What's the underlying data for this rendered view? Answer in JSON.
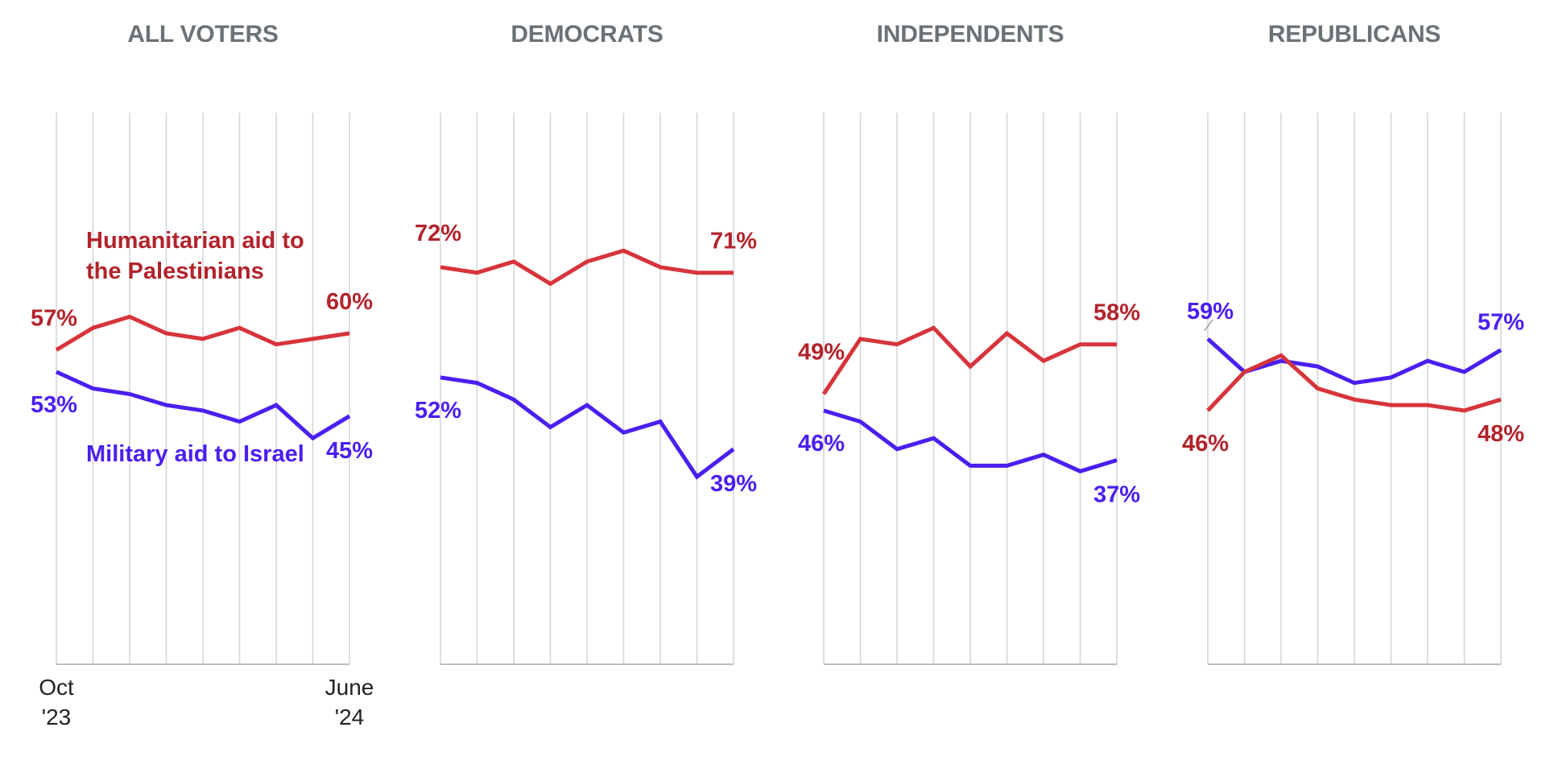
{
  "colors": {
    "humanitarian": "#d7343b",
    "humanitarian_text": "#b2232b",
    "military": "#4a1ff0",
    "military_text": "#4a1ff0",
    "grid": "#d4d4d4",
    "axis": "#bdbdbd",
    "title": "#6b7276",
    "tick_text": "#222222"
  },
  "chart_data": [
    {
      "type": "line",
      "title": "ALL VOTERS",
      "ylim": [
        0,
        100
      ],
      "grid": true,
      "x_start_label": [
        "Oct",
        "'23"
      ],
      "x_end_label": [
        "June",
        "'24"
      ],
      "series": [
        {
          "name": "Humanitarian aid to the Palestinians",
          "key": "humanitarian",
          "values": [
            57,
            61,
            63,
            60,
            59,
            61,
            58,
            59,
            60
          ],
          "start_label": "57%",
          "end_label": "60%"
        },
        {
          "name": "Military aid to Israel",
          "key": "military",
          "values": [
            53,
            50,
            49,
            47,
            46,
            44,
            47,
            41,
            45
          ],
          "start_label": "53%",
          "end_label": "45%"
        }
      ],
      "series_labels": {
        "humanitarian": [
          "Humanitarian aid to",
          "the Palestinians"
        ],
        "military": [
          "Military aid to Israel"
        ]
      }
    },
    {
      "type": "line",
      "title": "DEMOCRATS",
      "ylim": [
        0,
        100
      ],
      "grid": true,
      "series": [
        {
          "key": "humanitarian",
          "values": [
            72,
            71,
            73,
            69,
            73,
            75,
            72,
            71,
            71
          ],
          "start_label": "72%",
          "end_label": "71%"
        },
        {
          "key": "military",
          "values": [
            52,
            51,
            48,
            43,
            47,
            42,
            44,
            34,
            39
          ],
          "start_label": "52%",
          "end_label": "39%"
        }
      ]
    },
    {
      "type": "line",
      "title": "INDEPENDENTS",
      "ylim": [
        0,
        100
      ],
      "grid": true,
      "series": [
        {
          "key": "humanitarian",
          "values": [
            49,
            59,
            58,
            61,
            54,
            60,
            55,
            58,
            58
          ],
          "start_label": "49%",
          "end_label": "58%"
        },
        {
          "key": "military",
          "values": [
            46,
            44,
            39,
            41,
            36,
            36,
            38,
            35,
            37
          ],
          "start_label": "46%",
          "end_label": "37%"
        }
      ]
    },
    {
      "type": "line",
      "title": "REPUBLICANS",
      "ylim": [
        0,
        100
      ],
      "grid": true,
      "series": [
        {
          "key": "military",
          "values": [
            59,
            53,
            55,
            54,
            51,
            52,
            55,
            53,
            57
          ],
          "start_label": "59%",
          "end_label": "57%"
        },
        {
          "key": "humanitarian",
          "values": [
            46,
            53,
            56,
            50,
            48,
            47,
            47,
            46,
            48
          ],
          "start_label": "46%",
          "end_label": "48%"
        }
      ]
    }
  ]
}
